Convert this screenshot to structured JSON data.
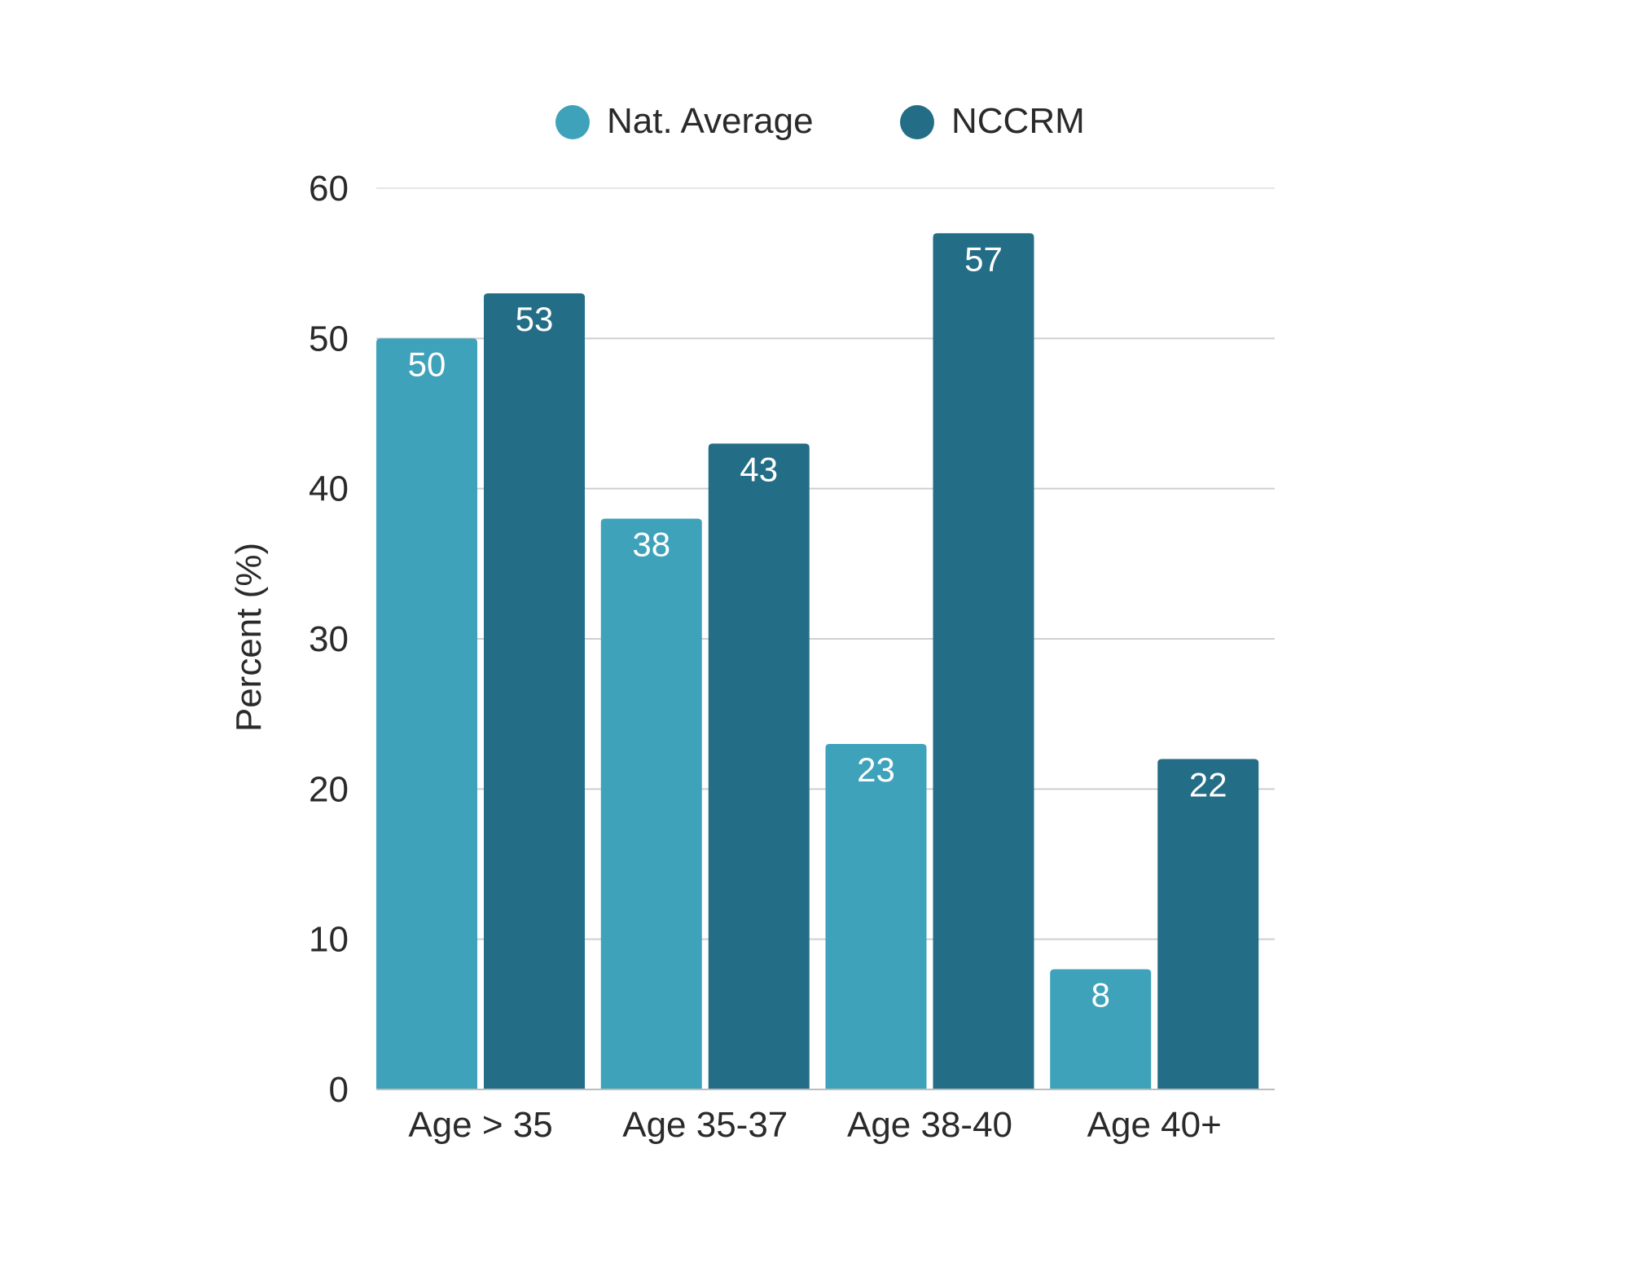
{
  "chart_data": {
    "type": "bar",
    "title": "",
    "xlabel": "",
    "ylabel": "Percent (%)",
    "categories": [
      "Age > 35",
      "Age 35-37",
      "Age 38-40",
      "Age 40+"
    ],
    "series": [
      {
        "name": "Nat. Average",
        "values": [
          50,
          38,
          23,
          8
        ],
        "color": "#3ea2ba"
      },
      {
        "name": "NCCRM",
        "values": [
          53,
          43,
          57,
          22
        ],
        "color": "#236e86"
      }
    ],
    "ylim": [
      0,
      60
    ],
    "yticks": [
      0,
      10,
      20,
      30,
      40,
      50,
      60
    ],
    "grid": true,
    "legend_position": "top-center",
    "data_labels": true
  }
}
